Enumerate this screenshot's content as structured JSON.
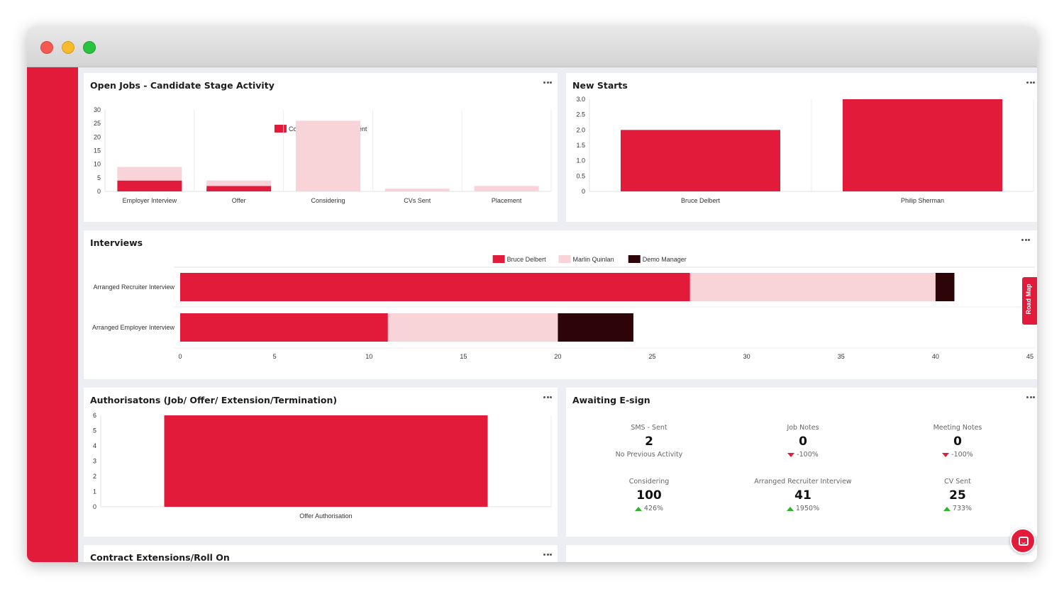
{
  "colors": {
    "accent": "#e31b3a",
    "light": "#f8d3d8",
    "dark": "#2d0508"
  },
  "panels": {
    "open_jobs": {
      "title": "Open Jobs - Candidate Stage Activity"
    },
    "new_starts": {
      "title": "New Starts"
    },
    "interviews": {
      "title": "Interviews"
    },
    "authorisations": {
      "title": "Authorisatons (Job/ Offer/ Extension/Termination)"
    },
    "esign": {
      "title": "Awaiting E-sign"
    },
    "contract_ext": {
      "title": "Contract Extensions/Roll On"
    }
  },
  "esign_stats": [
    {
      "label": "SMS - Sent",
      "value": "2",
      "change": "No Previous Activity",
      "trend": "none"
    },
    {
      "label": "Job Notes",
      "value": "0",
      "change": "-100%",
      "trend": "down"
    },
    {
      "label": "Meeting Notes",
      "value": "0",
      "change": "-100%",
      "trend": "down"
    },
    {
      "label": "Considering",
      "value": "100",
      "change": "426%",
      "trend": "up"
    },
    {
      "label": "Arranged Recruiter Interview",
      "value": "41",
      "change": "1950%",
      "trend": "up"
    },
    {
      "label": "CV Sent",
      "value": "25",
      "change": "733%",
      "trend": "up"
    }
  ],
  "roadmap_label": "Road Map",
  "chart_data": [
    {
      "type": "bar",
      "stacked": true,
      "categories": [
        "Employer Interview",
        "Offer",
        "Considering",
        "CVs Sent",
        "Placement"
      ],
      "series": [
        {
          "name": "Contract",
          "values": [
            4,
            2,
            0,
            0,
            0
          ]
        },
        {
          "name": "Permanent",
          "values": [
            5,
            2,
            26,
            1,
            2
          ]
        }
      ],
      "yticks": [
        0,
        5,
        10,
        15,
        20,
        25,
        30
      ],
      "ylim": [
        0,
        30
      ],
      "legend": "top"
    },
    {
      "type": "bar",
      "categories": [
        "Bruce Delbert",
        "Philip Sherman"
      ],
      "values": [
        2,
        3
      ],
      "yticks": [
        "0",
        "0.5",
        "1.0",
        "1.5",
        "2.0",
        "2.5",
        "3.0"
      ],
      "ylim": [
        0,
        3
      ]
    },
    {
      "type": "bar",
      "orientation": "horizontal",
      "stacked": true,
      "categories": [
        "Arranged Recruiter Interview",
        "Arranged Employer Interview"
      ],
      "series": [
        {
          "name": "Bruce Delbert",
          "values": [
            27,
            11
          ]
        },
        {
          "name": "Marlin Quinlan",
          "values": [
            13,
            9
          ]
        },
        {
          "name": "Demo Manager",
          "values": [
            1,
            4
          ]
        }
      ],
      "xticks": [
        0,
        5,
        10,
        15,
        20,
        25,
        30,
        35,
        40,
        45
      ],
      "xlim": [
        0,
        45
      ],
      "legend": "top"
    },
    {
      "type": "bar",
      "categories": [
        "Offer Authorisation"
      ],
      "values": [
        6
      ],
      "yticks": [
        0,
        1,
        2,
        3,
        4,
        5,
        6
      ],
      "ylim": [
        0,
        6
      ]
    }
  ]
}
